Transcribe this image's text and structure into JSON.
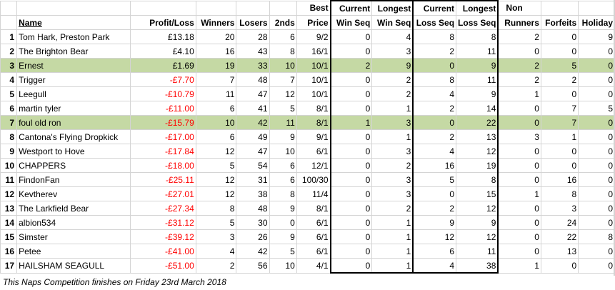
{
  "headers": {
    "row1": [
      "",
      "",
      "",
      "",
      "",
      "",
      "Best",
      "Current",
      "Longest",
      "Current",
      "Longest",
      "Non",
      "",
      ""
    ],
    "row2": [
      "",
      "Name",
      "Profit/Loss",
      "Winners",
      "Losers",
      "2nds",
      "Price",
      "Win Seq",
      "Win Seq",
      "Loss Seq",
      "Loss Seq",
      "Runners",
      "Forfeits",
      "Holiday"
    ]
  },
  "rows": [
    {
      "idx": "1",
      "name": "Tom Hark, Preston Park",
      "pl": "£13.18",
      "neg": false,
      "w": "20",
      "l": "28",
      "s": "6",
      "price": "9/2",
      "cws": "0",
      "lws": "4",
      "cls": "8",
      "lls": "8",
      "nr": "2",
      "ff": "0",
      "hol": "9",
      "hl": false
    },
    {
      "idx": "2",
      "name": "The Brighton Bear",
      "pl": "£4.10",
      "neg": false,
      "w": "16",
      "l": "43",
      "s": "8",
      "price": "16/1",
      "cws": "0",
      "lws": "3",
      "cls": "2",
      "lls": "11",
      "nr": "0",
      "ff": "0",
      "hol": "0",
      "hl": false
    },
    {
      "idx": "3",
      "name": "Ernest",
      "pl": "£1.69",
      "neg": false,
      "w": "19",
      "l": "33",
      "s": "10",
      "price": "10/1",
      "cws": "2",
      "lws": "9",
      "cls": "0",
      "lls": "9",
      "nr": "2",
      "ff": "5",
      "hol": "0",
      "hl": true
    },
    {
      "idx": "4",
      "name": "Trigger",
      "pl": "-£7.70",
      "neg": true,
      "w": "7",
      "l": "48",
      "s": "7",
      "price": "10/1",
      "cws": "0",
      "lws": "2",
      "cls": "8",
      "lls": "11",
      "nr": "2",
      "ff": "2",
      "hol": "0",
      "hl": false
    },
    {
      "idx": "5",
      "name": "Leegull",
      "pl": "-£10.79",
      "neg": true,
      "w": "11",
      "l": "47",
      "s": "12",
      "price": "10/1",
      "cws": "0",
      "lws": "2",
      "cls": "4",
      "lls": "9",
      "nr": "1",
      "ff": "0",
      "hol": "0",
      "hl": false
    },
    {
      "idx": "6",
      "name": "martin tyler",
      "pl": "-£11.00",
      "neg": true,
      "w": "6",
      "l": "41",
      "s": "5",
      "price": "8/1",
      "cws": "0",
      "lws": "1",
      "cls": "2",
      "lls": "14",
      "nr": "0",
      "ff": "7",
      "hol": "5",
      "hl": false
    },
    {
      "idx": "7",
      "name": "foul old ron",
      "pl": "-£15.79",
      "neg": true,
      "w": "10",
      "l": "42",
      "s": "11",
      "price": "8/1",
      "cws": "1",
      "lws": "3",
      "cls": "0",
      "lls": "22",
      "nr": "0",
      "ff": "7",
      "hol": "0",
      "hl": true
    },
    {
      "idx": "8",
      "name": "Cantona's Flying Dropkick",
      "pl": "-£17.00",
      "neg": true,
      "w": "6",
      "l": "49",
      "s": "9",
      "price": "9/1",
      "cws": "0",
      "lws": "1",
      "cls": "2",
      "lls": "13",
      "nr": "3",
      "ff": "1",
      "hol": "0",
      "hl": false
    },
    {
      "idx": "9",
      "name": "Westport to Hove",
      "pl": "-£17.84",
      "neg": true,
      "w": "12",
      "l": "47",
      "s": "10",
      "price": "6/1",
      "cws": "0",
      "lws": "3",
      "cls": "4",
      "lls": "12",
      "nr": "0",
      "ff": "0",
      "hol": "0",
      "hl": false
    },
    {
      "idx": "10",
      "name": "CHAPPERS",
      "pl": "-£18.00",
      "neg": true,
      "w": "5",
      "l": "54",
      "s": "6",
      "price": "12/1",
      "cws": "0",
      "lws": "2",
      "cls": "16",
      "lls": "19",
      "nr": "0",
      "ff": "0",
      "hol": "0",
      "hl": false
    },
    {
      "idx": "11",
      "name": "FindonFan",
      "pl": "-£25.11",
      "neg": true,
      "w": "12",
      "l": "31",
      "s": "6",
      "price": "100/30",
      "cws": "0",
      "lws": "3",
      "cls": "5",
      "lls": "8",
      "nr": "0",
      "ff": "16",
      "hol": "0",
      "hl": false
    },
    {
      "idx": "12",
      "name": "Kevtherev",
      "pl": "-£27.01",
      "neg": true,
      "w": "12",
      "l": "38",
      "s": "8",
      "price": "11/4",
      "cws": "0",
      "lws": "3",
      "cls": "0",
      "lls": "15",
      "nr": "1",
      "ff": "8",
      "hol": "0",
      "hl": false
    },
    {
      "idx": "13",
      "name": "The Larkfield Bear",
      "pl": "-£27.34",
      "neg": true,
      "w": "8",
      "l": "48",
      "s": "9",
      "price": "8/1",
      "cws": "0",
      "lws": "2",
      "cls": "2",
      "lls": "12",
      "nr": "0",
      "ff": "3",
      "hol": "0",
      "hl": false
    },
    {
      "idx": "14",
      "name": "albion534",
      "pl": "-£31.12",
      "neg": true,
      "w": "5",
      "l": "30",
      "s": "0",
      "price": "6/1",
      "cws": "0",
      "lws": "1",
      "cls": "9",
      "lls": "9",
      "nr": "0",
      "ff": "24",
      "hol": "0",
      "hl": false
    },
    {
      "idx": "15",
      "name": "Simster",
      "pl": "-£39.12",
      "neg": true,
      "w": "3",
      "l": "26",
      "s": "9",
      "price": "6/1",
      "cws": "0",
      "lws": "1",
      "cls": "12",
      "lls": "12",
      "nr": "0",
      "ff": "22",
      "hol": "8",
      "hl": false
    },
    {
      "idx": "16",
      "name": "Petee",
      "pl": "-£41.00",
      "neg": true,
      "w": "4",
      "l": "42",
      "s": "5",
      "price": "6/1",
      "cws": "0",
      "lws": "1",
      "cls": "6",
      "lls": "11",
      "nr": "0",
      "ff": "13",
      "hol": "0",
      "hl": false
    },
    {
      "idx": "17",
      "name": "HAILSHAM SEAGULL",
      "pl": "-£51.00",
      "neg": true,
      "w": "2",
      "l": "56",
      "s": "10",
      "price": "4/1",
      "cws": "0",
      "lws": "1",
      "cls": "4",
      "lls": "38",
      "nr": "1",
      "ff": "0",
      "hol": "0",
      "hl": false
    }
  ],
  "footer": "This Naps Competition finishes on Friday 23rd March 2018",
  "colors": {
    "highlight": "#c5d9a4",
    "negative": "#ff0000",
    "gridline": "#d4d4d4"
  }
}
